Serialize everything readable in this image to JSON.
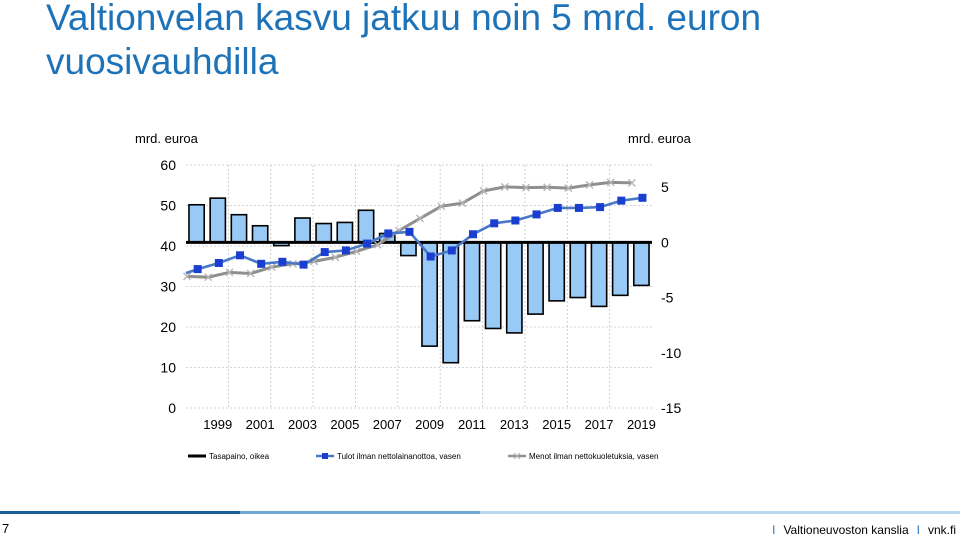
{
  "slide": {
    "title": "Valtionvelan kasvu jatkuu noin 5 mrd. euron vuosivauhdilla",
    "page_number": "7",
    "footer_org": "Valtioneuvoston kanslia",
    "footer_site": "vnk.fi",
    "footer_separator": "I"
  },
  "colors": {
    "title": "#1e73b8",
    "bars": "#99c9f5",
    "income_line": "#4a78c8",
    "income_marker": "#1a3fd0",
    "expense_line": "#8f8f8f"
  },
  "chart_data": {
    "type": "bar",
    "left_axis_label": "mrd. euroa",
    "right_axis_label": "mrd. euroa",
    "left_ylim": [
      0,
      60
    ],
    "left_ticks": [
      0,
      10,
      20,
      30,
      40,
      50,
      60
    ],
    "right_ylim": [
      -15,
      7
    ],
    "right_ticks": [
      -15,
      -10,
      -5,
      0,
      5
    ],
    "x_tick_labels": [
      "1999",
      "2001",
      "2003",
      "2005",
      "2007",
      "2009",
      "2011",
      "2013",
      "2015",
      "2017",
      "2019"
    ],
    "years": [
      1998,
      1999,
      2000,
      2001,
      2002,
      2003,
      2004,
      2005,
      2006,
      2007,
      2008,
      2009,
      2010,
      2011,
      2012,
      2013,
      2014,
      2015,
      2016,
      2017,
      2018,
      2019
    ],
    "series": [
      {
        "name": "Tasapaino, oikea",
        "kind": "bar",
        "axis": "right",
        "values": [
          3.4,
          4.0,
          2.5,
          1.5,
          -0.3,
          2.2,
          1.7,
          1.8,
          2.9,
          0.8,
          -1.2,
          -9.4,
          -10.9,
          -7.1,
          -7.8,
          -8.2,
          -6.5,
          -5.3,
          -5.0,
          -5.8,
          -4.8,
          -3.9
        ]
      },
      {
        "name": "Tulot ilman nettolainanottoa, vasen",
        "kind": "line",
        "axis": "left",
        "values": [
          34.3,
          35.8,
          37.7,
          35.6,
          36.1,
          35.4,
          38.5,
          38.9,
          40.6,
          43.1,
          43.5,
          37.4,
          38.9,
          42.9,
          45.6,
          46.3,
          47.8,
          49.4,
          49.4,
          49.6,
          51.2,
          51.9
        ]
      },
      {
        "name": "Menot ilman nettokuoletuksia, vasen",
        "kind": "line",
        "axis": "left",
        "values": [
          32.5,
          32.3,
          33.5,
          33.2,
          34.8,
          35.6,
          36.2,
          37.2,
          38.7,
          40.3,
          43.8,
          46.8,
          49.8,
          50.6,
          53.6,
          54.6,
          54.4,
          54.5,
          54.3,
          55.1,
          55.7,
          55.6
        ]
      }
    ],
    "grid": true,
    "legend_position": "bottom"
  }
}
